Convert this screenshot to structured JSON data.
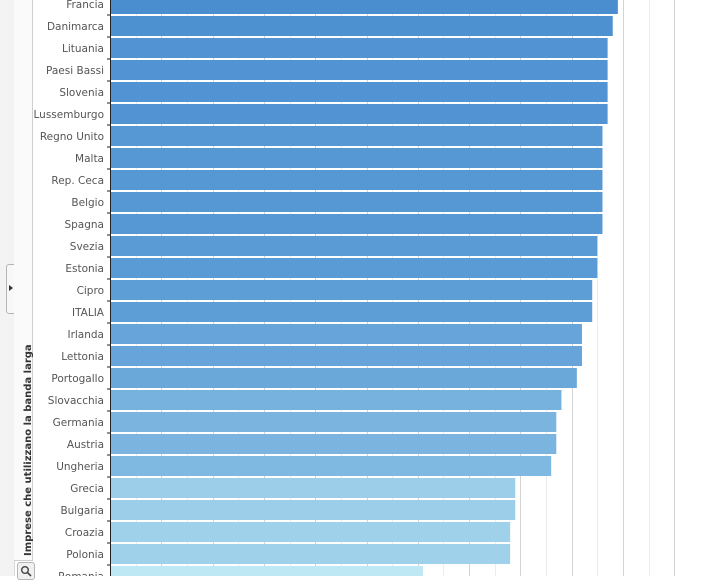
{
  "chart_data": {
    "type": "bar",
    "orientation": "horizontal",
    "ylabel": "Imprese che utilizzano la banda larga",
    "categories": [
      "Francia",
      "Danimarca",
      "Lituania",
      "Paesi Bassi",
      "Slovenia",
      "Lussemburgo",
      "Regno Unito",
      "Malta",
      "Rep. Ceca",
      "Belgio",
      "Spagna",
      "Svezia",
      "Estonia",
      "Cipro",
      "ITALIA",
      "Irlanda",
      "Lettonia",
      "Portogallo",
      "Slovacchia",
      "Germania",
      "Austria",
      "Ungheria",
      "Grecia",
      "Bulgaria",
      "Croazia",
      "Polonia",
      "Romania"
    ],
    "values": [
      99,
      98,
      97,
      97,
      97,
      97,
      96,
      96,
      96,
      96,
      96,
      95,
      95,
      94,
      94,
      92,
      92,
      91,
      88,
      87,
      87,
      86,
      79,
      79,
      78,
      78,
      61
    ],
    "xlim": [
      0,
      110
    ],
    "grid": true,
    "color_scale": [
      "#4a8ed0",
      "#bde8f4"
    ]
  },
  "controls": {
    "collapse_icon": "chevron-right-icon",
    "zoom_icon": "magnifier-icon"
  }
}
